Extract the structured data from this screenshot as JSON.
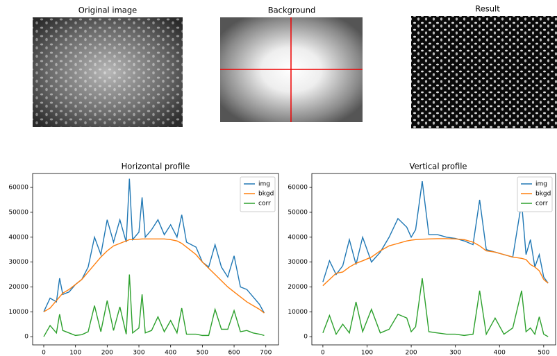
{
  "images": [
    {
      "title": "Original image"
    },
    {
      "title": "Background"
    },
    {
      "title": "Result"
    }
  ],
  "chart_data": [
    {
      "type": "line",
      "title": "Horizontal profile",
      "x": [
        0,
        20,
        40,
        50,
        60,
        80,
        100,
        120,
        140,
        160,
        180,
        200,
        220,
        240,
        260,
        270,
        280,
        300,
        310,
        320,
        340,
        360,
        380,
        400,
        420,
        435,
        450,
        480,
        500,
        520,
        540,
        560,
        580,
        600,
        620,
        640,
        660,
        680,
        695
      ],
      "series": [
        {
          "name": "img",
          "color": "#1f77b4",
          "values": [
            10000,
            15500,
            14000,
            23500,
            17000,
            18000,
            21000,
            23000,
            28000,
            40000,
            33000,
            47000,
            38000,
            47000,
            38000,
            63500,
            39000,
            42000,
            56000,
            40000,
            43000,
            47000,
            41000,
            45000,
            40000,
            49000,
            38000,
            36000,
            30000,
            28000,
            37000,
            28000,
            24000,
            32500,
            20000,
            19000,
            16000,
            13000,
            9500
          ]
        },
        {
          "name": "bkgd",
          "color": "#ff7f0e",
          "values": [
            10000,
            11500,
            14500,
            16000,
            17500,
            19000,
            21000,
            23000,
            26000,
            29000,
            32000,
            34500,
            36500,
            37500,
            38500,
            39000,
            39000,
            39200,
            39300,
            39300,
            39300,
            39300,
            39300,
            39000,
            38500,
            37500,
            36000,
            33000,
            30000,
            27500,
            25000,
            22500,
            20000,
            18000,
            16000,
            14000,
            12500,
            11000,
            9500
          ]
        },
        {
          "name": "corr",
          "color": "#2ca02c",
          "values": [
            0,
            4500,
            1500,
            9000,
            2500,
            1500,
            500,
            800,
            2000,
            12500,
            2000,
            14500,
            2500,
            12000,
            1000,
            25000,
            1500,
            3500,
            17000,
            1500,
            2500,
            8000,
            2000,
            6500,
            1500,
            11500,
            1000,
            1000,
            500,
            500,
            11000,
            3000,
            3000,
            10500,
            2000,
            2500,
            1500,
            1000,
            500
          ]
        }
      ],
      "xlim": [
        -35,
        740
      ],
      "xticks": [
        0,
        100,
        200,
        300,
        400,
        500,
        600,
        700
      ],
      "ylim": [
        -3300,
        65600
      ],
      "yticks": [
        0,
        10000,
        20000,
        30000,
        40000,
        50000,
        60000
      ],
      "legend": "upper right"
    },
    {
      "type": "line",
      "title": "Vertical profile",
      "x": [
        0,
        15,
        30,
        45,
        60,
        75,
        90,
        110,
        130,
        150,
        170,
        190,
        200,
        210,
        225,
        240,
        260,
        280,
        300,
        320,
        340,
        355,
        370,
        390,
        410,
        430,
        450,
        460,
        470,
        480,
        490,
        500,
        510
      ],
      "series": [
        {
          "name": "img",
          "color": "#1f77b4",
          "values": [
            22000,
            30500,
            25000,
            28500,
            39000,
            29000,
            40000,
            30000,
            34000,
            40000,
            47500,
            44000,
            40000,
            43000,
            62500,
            41000,
            41000,
            40000,
            39500,
            38500,
            37000,
            55000,
            35000,
            34000,
            33000,
            32000,
            54000,
            33000,
            39000,
            28000,
            33000,
            24000,
            21500
          ]
        },
        {
          "name": "bkgd",
          "color": "#ff7f0e",
          "values": [
            20500,
            23000,
            25500,
            26000,
            28000,
            29500,
            30500,
            32000,
            34500,
            36500,
            37500,
            38500,
            38800,
            39000,
            39200,
            39300,
            39400,
            39400,
            39300,
            39000,
            38000,
            36500,
            34500,
            34000,
            33000,
            32000,
            31500,
            31000,
            29000,
            28000,
            26500,
            23000,
            21500
          ]
        },
        {
          "name": "corr",
          "color": "#2ca02c",
          "values": [
            1500,
            8500,
            1000,
            5000,
            1500,
            14000,
            2000,
            11000,
            1500,
            3000,
            9000,
            7500,
            2000,
            4000,
            23500,
            2000,
            1500,
            1000,
            1000,
            500,
            1000,
            18500,
            1000,
            7500,
            1000,
            3500,
            18500,
            2000,
            3500,
            1000,
            8000,
            1000,
            0
          ]
        }
      ],
      "xlim": [
        -25,
        527
      ],
      "xticks": [
        0,
        100,
        200,
        300,
        400,
        500
      ],
      "ylim": [
        -3300,
        65600
      ],
      "yticks": [
        0,
        10000,
        20000,
        30000,
        40000,
        50000,
        60000
      ],
      "legend": "upper right"
    }
  ]
}
